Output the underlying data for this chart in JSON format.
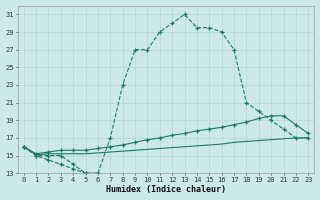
{
  "xlabel": "Humidex (Indice chaleur)",
  "background_color": "#cce8e8",
  "grid_color": "#b8d8d8",
  "line_color": "#1a7a6a",
  "xlim": [
    -0.5,
    23.5
  ],
  "ylim": [
    13,
    32
  ],
  "xticks": [
    0,
    1,
    2,
    3,
    4,
    5,
    6,
    7,
    8,
    9,
    10,
    11,
    12,
    13,
    14,
    15,
    16,
    17,
    18,
    19,
    20,
    21,
    22,
    23
  ],
  "yticks": [
    13,
    15,
    17,
    19,
    21,
    23,
    25,
    27,
    29,
    31
  ],
  "series": [
    {
      "x": [
        0,
        1,
        2,
        3,
        4,
        5,
        6,
        7,
        8,
        9,
        10,
        11,
        12,
        13,
        14,
        15,
        16,
        17,
        18,
        19,
        20,
        21,
        22,
        23
      ],
      "y": [
        16,
        15,
        15,
        15,
        14,
        13,
        13,
        17,
        23,
        27,
        27,
        29,
        30,
        31,
        29.5,
        29.5,
        29,
        27,
        21,
        20,
        19,
        18,
        17,
        17
      ],
      "linestyle": "--",
      "has_markers": true
    },
    {
      "x": [
        0,
        1,
        2,
        3,
        4,
        5,
        6
      ],
      "y": [
        16,
        15,
        14.5,
        14,
        13.5,
        13,
        13
      ],
      "linestyle": "--",
      "has_markers": true
    },
    {
      "x": [
        0,
        1,
        2,
        3,
        4,
        5,
        6,
        7,
        8,
        9,
        10,
        11,
        12,
        13,
        14,
        15,
        16,
        17,
        18,
        19,
        20,
        21,
        22,
        23
      ],
      "y": [
        16,
        15.2,
        15.4,
        15.6,
        15.6,
        15.6,
        15.8,
        16,
        16.2,
        16.5,
        16.8,
        17,
        17.3,
        17.5,
        17.8,
        18,
        18.2,
        18.5,
        18.8,
        19.2,
        19.5,
        19.5,
        18.5,
        17.5
      ],
      "linestyle": "-",
      "has_markers": true
    },
    {
      "x": [
        0,
        1,
        2,
        3,
        4,
        5,
        6,
        7,
        8,
        9,
        10,
        11,
        12,
        13,
        14,
        15,
        16,
        17,
        18,
        19,
        20,
        21,
        22,
        23
      ],
      "y": [
        16,
        15.1,
        15.2,
        15.2,
        15.2,
        15.2,
        15.3,
        15.4,
        15.5,
        15.6,
        15.7,
        15.8,
        15.9,
        16,
        16.1,
        16.2,
        16.3,
        16.5,
        16.6,
        16.7,
        16.8,
        16.9,
        17,
        17
      ],
      "linestyle": "-",
      "has_markers": false
    }
  ]
}
